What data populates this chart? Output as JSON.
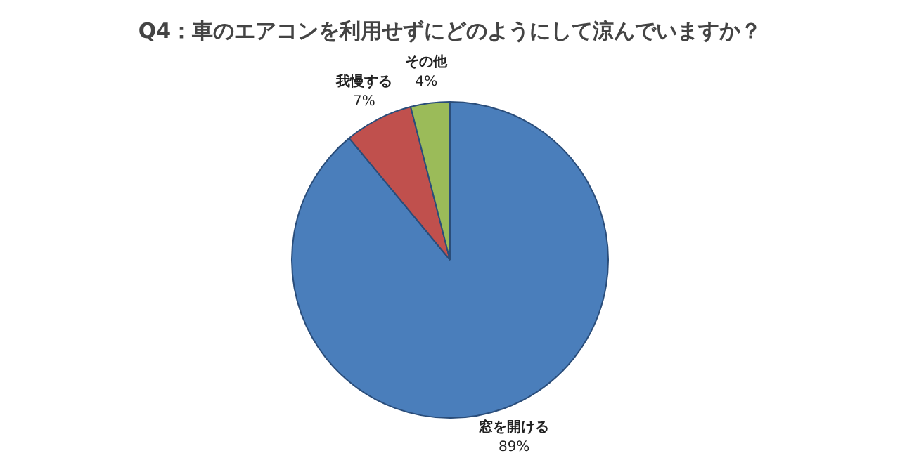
{
  "chart_data": {
    "type": "pie",
    "title": "Q4：車のエアコンを利用せずにどのようにして涼んでいますか？",
    "categories": [
      "窓を開ける",
      "我慢する",
      "その他"
    ],
    "values": [
      89,
      7,
      4
    ],
    "colors": [
      "#4a7ebb",
      "#c0504d",
      "#9bbb59"
    ],
    "value_labels": [
      "89%",
      "7%",
      "4%"
    ],
    "legend": false
  }
}
